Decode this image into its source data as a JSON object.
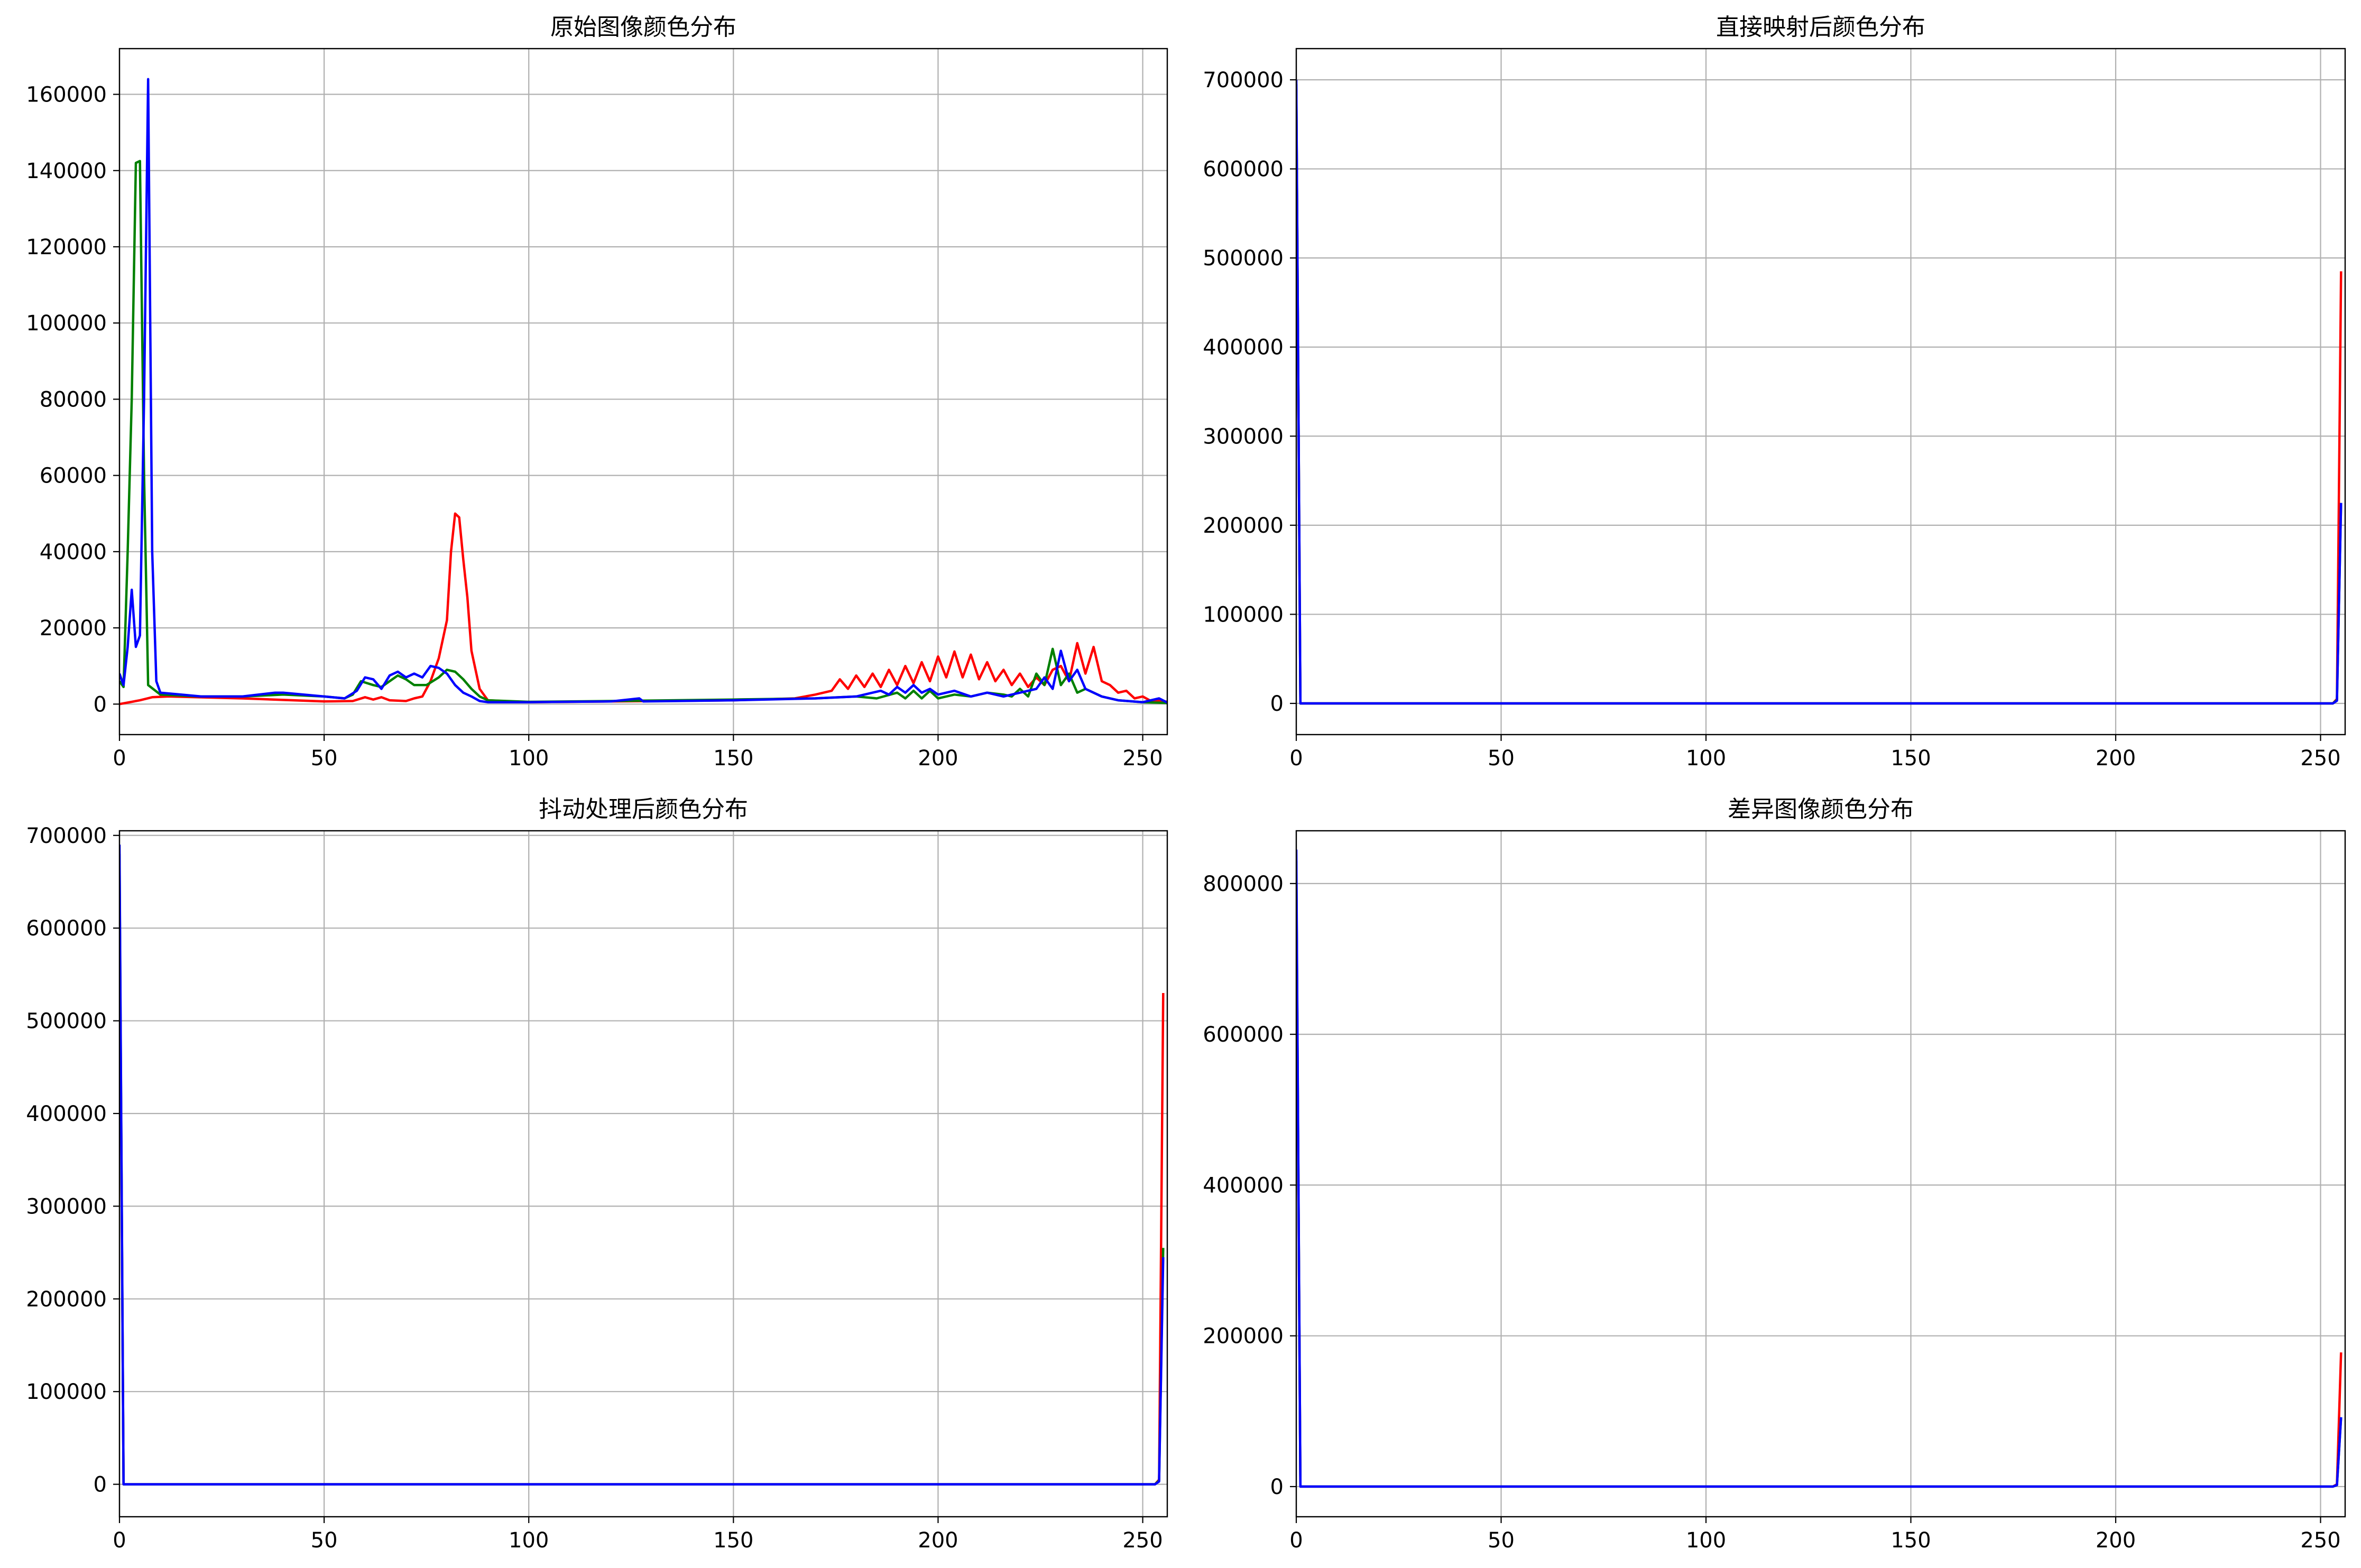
{
  "chart_data": [
    {
      "type": "line",
      "title": "原始图像颜色分布",
      "xlabel": "",
      "ylabel": "",
      "xlim": [
        0,
        256
      ],
      "ylim": [
        -8000,
        172000
      ],
      "xticks": [
        0,
        50,
        100,
        150,
        200,
        250
      ],
      "yticks": [
        0,
        20000,
        40000,
        60000,
        80000,
        100000,
        120000,
        140000,
        160000
      ],
      "grid": true,
      "series": [
        {
          "color": "#ff0000",
          "points": [
            [
              0,
              0
            ],
            [
              5,
              1000
            ],
            [
              8,
              1800
            ],
            [
              12,
              2000
            ],
            [
              30,
              1500
            ],
            [
              50,
              700
            ],
            [
              57,
              800
            ],
            [
              60,
              1800
            ],
            [
              62,
              1200
            ],
            [
              64,
              1800
            ],
            [
              66,
              1000
            ],
            [
              70,
              800
            ],
            [
              72,
              1500
            ],
            [
              74,
              2000
            ],
            [
              76,
              6000
            ],
            [
              78,
              12000
            ],
            [
              80,
              22000
            ],
            [
              81,
              40000
            ],
            [
              82,
              50000
            ],
            [
              83,
              49000
            ],
            [
              84,
              38000
            ],
            [
              85,
              28000
            ],
            [
              86,
              14000
            ],
            [
              88,
              4000
            ],
            [
              90,
              1000
            ],
            [
              100,
              500
            ],
            [
              120,
              700
            ],
            [
              150,
              1000
            ],
            [
              165,
              1500
            ],
            [
              170,
              2500
            ],
            [
              174,
              3500
            ],
            [
              176,
              6500
            ],
            [
              178,
              4000
            ],
            [
              180,
              7500
            ],
            [
              182,
              4500
            ],
            [
              184,
              8000
            ],
            [
              186,
              4500
            ],
            [
              188,
              9000
            ],
            [
              190,
              5000
            ],
            [
              192,
              10000
            ],
            [
              194,
              5500
            ],
            [
              196,
              11000
            ],
            [
              198,
              6000
            ],
            [
              200,
              12500
            ],
            [
              202,
              7000
            ],
            [
              204,
              13800
            ],
            [
              206,
              7000
            ],
            [
              208,
              13000
            ],
            [
              210,
              6500
            ],
            [
              212,
              11000
            ],
            [
              214,
              6000
            ],
            [
              216,
              9000
            ],
            [
              218,
              5000
            ],
            [
              220,
              8000
            ],
            [
              222,
              4500
            ],
            [
              224,
              7000
            ],
            [
              226,
              5000
            ],
            [
              228,
              9000
            ],
            [
              230,
              10000
            ],
            [
              232,
              6000
            ],
            [
              234,
              16000
            ],
            [
              236,
              8000
            ],
            [
              238,
              15000
            ],
            [
              240,
              6000
            ],
            [
              242,
              5000
            ],
            [
              244,
              3000
            ],
            [
              246,
              3500
            ],
            [
              248,
              1500
            ],
            [
              250,
              2000
            ],
            [
              252,
              800
            ],
            [
              254,
              1000
            ],
            [
              256,
              600
            ]
          ]
        },
        {
          "color": "#008000",
          "points": [
            [
              0,
              6000
            ],
            [
              1,
              4500
            ],
            [
              2,
              40000
            ],
            [
              3,
              80000
            ],
            [
              4,
              142000
            ],
            [
              5,
              142500
            ],
            [
              6,
              60000
            ],
            [
              7,
              5000
            ],
            [
              10,
              2500
            ],
            [
              20,
              2000
            ],
            [
              30,
              2000
            ],
            [
              40,
              2500
            ],
            [
              50,
              2000
            ],
            [
              55,
              1500
            ],
            [
              57,
              2500
            ],
            [
              59,
              6000
            ],
            [
              62,
              5000
            ],
            [
              64,
              4500
            ],
            [
              66,
              6000
            ],
            [
              68,
              7500
            ],
            [
              70,
              6500
            ],
            [
              72,
              5000
            ],
            [
              75,
              5000
            ],
            [
              78,
              7000
            ],
            [
              80,
              9000
            ],
            [
              82,
              8500
            ],
            [
              84,
              6500
            ],
            [
              86,
              4000
            ],
            [
              88,
              2000
            ],
            [
              90,
              1000
            ],
            [
              100,
              600
            ],
            [
              120,
              800
            ],
            [
              150,
              1200
            ],
            [
              170,
              1500
            ],
            [
              180,
              2000
            ],
            [
              185,
              1500
            ],
            [
              190,
              3000
            ],
            [
              192,
              1500
            ],
            [
              194,
              3500
            ],
            [
              196,
              1500
            ],
            [
              198,
              3500
            ],
            [
              200,
              1500
            ],
            [
              204,
              2500
            ],
            [
              208,
              2000
            ],
            [
              212,
              3000
            ],
            [
              216,
              2500
            ],
            [
              218,
              2000
            ],
            [
              220,
              4000
            ],
            [
              222,
              2000
            ],
            [
              224,
              8000
            ],
            [
              226,
              5000
            ],
            [
              228,
              14500
            ],
            [
              230,
              5000
            ],
            [
              232,
              8000
            ],
            [
              234,
              3000
            ],
            [
              236,
              4000
            ],
            [
              240,
              2000
            ],
            [
              244,
              1000
            ],
            [
              250,
              500
            ],
            [
              256,
              300
            ]
          ]
        },
        {
          "color": "#0000ff",
          "points": [
            [
              0,
              8000
            ],
            [
              1,
              5000
            ],
            [
              2,
              15000
            ],
            [
              3,
              30000
            ],
            [
              4,
              15000
            ],
            [
              5,
              18000
            ],
            [
              6,
              80000
            ],
            [
              7,
              164000
            ],
            [
              8,
              40000
            ],
            [
              9,
              6000
            ],
            [
              10,
              3000
            ],
            [
              15,
              2500
            ],
            [
              20,
              2000
            ],
            [
              30,
              2000
            ],
            [
              38,
              3000
            ],
            [
              40,
              3000
            ],
            [
              50,
              2000
            ],
            [
              55,
              1500
            ],
            [
              58,
              3500
            ],
            [
              60,
              7000
            ],
            [
              62,
              6500
            ],
            [
              64,
              4000
            ],
            [
              66,
              7500
            ],
            [
              68,
              8500
            ],
            [
              70,
              7000
            ],
            [
              72,
              8000
            ],
            [
              74,
              7000
            ],
            [
              76,
              10000
            ],
            [
              78,
              9500
            ],
            [
              80,
              8000
            ],
            [
              82,
              5000
            ],
            [
              84,
              3000
            ],
            [
              86,
              2000
            ],
            [
              88,
              800
            ],
            [
              90,
              500
            ],
            [
              100,
              500
            ],
            [
              120,
              700
            ],
            [
              127,
              1500
            ],
            [
              128,
              700
            ],
            [
              150,
              1000
            ],
            [
              170,
              1500
            ],
            [
              180,
              2000
            ],
            [
              186,
              3500
            ],
            [
              188,
              2500
            ],
            [
              190,
              4500
            ],
            [
              192,
              3000
            ],
            [
              194,
              5000
            ],
            [
              196,
              3000
            ],
            [
              198,
              4000
            ],
            [
              200,
              2500
            ],
            [
              204,
              3500
            ],
            [
              208,
              2000
            ],
            [
              212,
              3000
            ],
            [
              216,
              2000
            ],
            [
              220,
              3000
            ],
            [
              224,
              4000
            ],
            [
              226,
              7000
            ],
            [
              228,
              4000
            ],
            [
              230,
              14000
            ],
            [
              232,
              6000
            ],
            [
              234,
              9000
            ],
            [
              236,
              4000
            ],
            [
              240,
              2000
            ],
            [
              244,
              1000
            ],
            [
              250,
              500
            ],
            [
              254,
              1500
            ],
            [
              256,
              400
            ]
          ]
        }
      ]
    },
    {
      "type": "line",
      "title": "直接映射后颜色分布",
      "xlabel": "",
      "ylabel": "",
      "xlim": [
        0,
        256
      ],
      "ylim": [
        -35000,
        735000
      ],
      "xticks": [
        0,
        50,
        100,
        150,
        200,
        250
      ],
      "yticks": [
        0,
        100000,
        200000,
        300000,
        400000,
        500000,
        600000,
        700000
      ],
      "grid": true,
      "series": [
        {
          "color": "#ff0000",
          "points": [
            [
              0,
              690000
            ],
            [
              1,
              0
            ],
            [
              253,
              0
            ],
            [
              254,
              5000
            ],
            [
              255,
              485000
            ]
          ]
        },
        {
          "color": "#008000",
          "points": [
            [
              0,
              695000
            ],
            [
              1,
              0
            ],
            [
              253,
              0
            ],
            [
              254,
              4000
            ],
            [
              255,
              225000
            ]
          ]
        },
        {
          "color": "#0000ff",
          "points": [
            [
              0,
              700000
            ],
            [
              1,
              0
            ],
            [
              253,
              0
            ],
            [
              254,
              3000
            ],
            [
              255,
              225000
            ]
          ]
        }
      ]
    },
    {
      "type": "line",
      "title": "抖动处理后颜色分布",
      "xlabel": "",
      "ylabel": "",
      "xlim": [
        0,
        256
      ],
      "ylim": [
        -35000,
        705000
      ],
      "xticks": [
        0,
        50,
        100,
        150,
        200,
        250
      ],
      "yticks": [
        0,
        100000,
        200000,
        300000,
        400000,
        500000,
        600000,
        700000
      ],
      "grid": true,
      "series": [
        {
          "color": "#ff0000",
          "points": [
            [
              0,
              660000
            ],
            [
              1,
              0
            ],
            [
              253,
              0
            ],
            [
              254,
              5000
            ],
            [
              255,
              530000
            ]
          ]
        },
        {
          "color": "#008000",
          "points": [
            [
              0,
              680000
            ],
            [
              1,
              0
            ],
            [
              253,
              0
            ],
            [
              254,
              4000
            ],
            [
              255,
              255000
            ]
          ]
        },
        {
          "color": "#0000ff",
          "points": [
            [
              0,
              690000
            ],
            [
              1,
              0
            ],
            [
              253,
              0
            ],
            [
              254,
              3000
            ],
            [
              255,
              245000
            ]
          ]
        }
      ]
    },
    {
      "type": "line",
      "title": "差异图像颜色分布",
      "xlabel": "",
      "ylabel": "",
      "xlim": [
        0,
        256
      ],
      "ylim": [
        -40000,
        870000
      ],
      "xticks": [
        0,
        50,
        100,
        150,
        200,
        250
      ],
      "yticks": [
        0,
        200000,
        400000,
        600000,
        800000
      ],
      "grid": true,
      "series": [
        {
          "color": "#ff0000",
          "points": [
            [
              0,
              820000
            ],
            [
              1,
              0
            ],
            [
              253,
              0
            ],
            [
              254,
              3000
            ],
            [
              255,
              178000
            ]
          ]
        },
        {
          "color": "#008000",
          "points": [
            [
              0,
              830000
            ],
            [
              1,
              0
            ],
            [
              253,
              0
            ],
            [
              254,
              2000
            ],
            [
              255,
              92000
            ]
          ]
        },
        {
          "color": "#0000ff",
          "points": [
            [
              0,
              845000
            ],
            [
              1,
              0
            ],
            [
              253,
              0
            ],
            [
              254,
              2000
            ],
            [
              255,
              92000
            ]
          ]
        }
      ]
    }
  ]
}
